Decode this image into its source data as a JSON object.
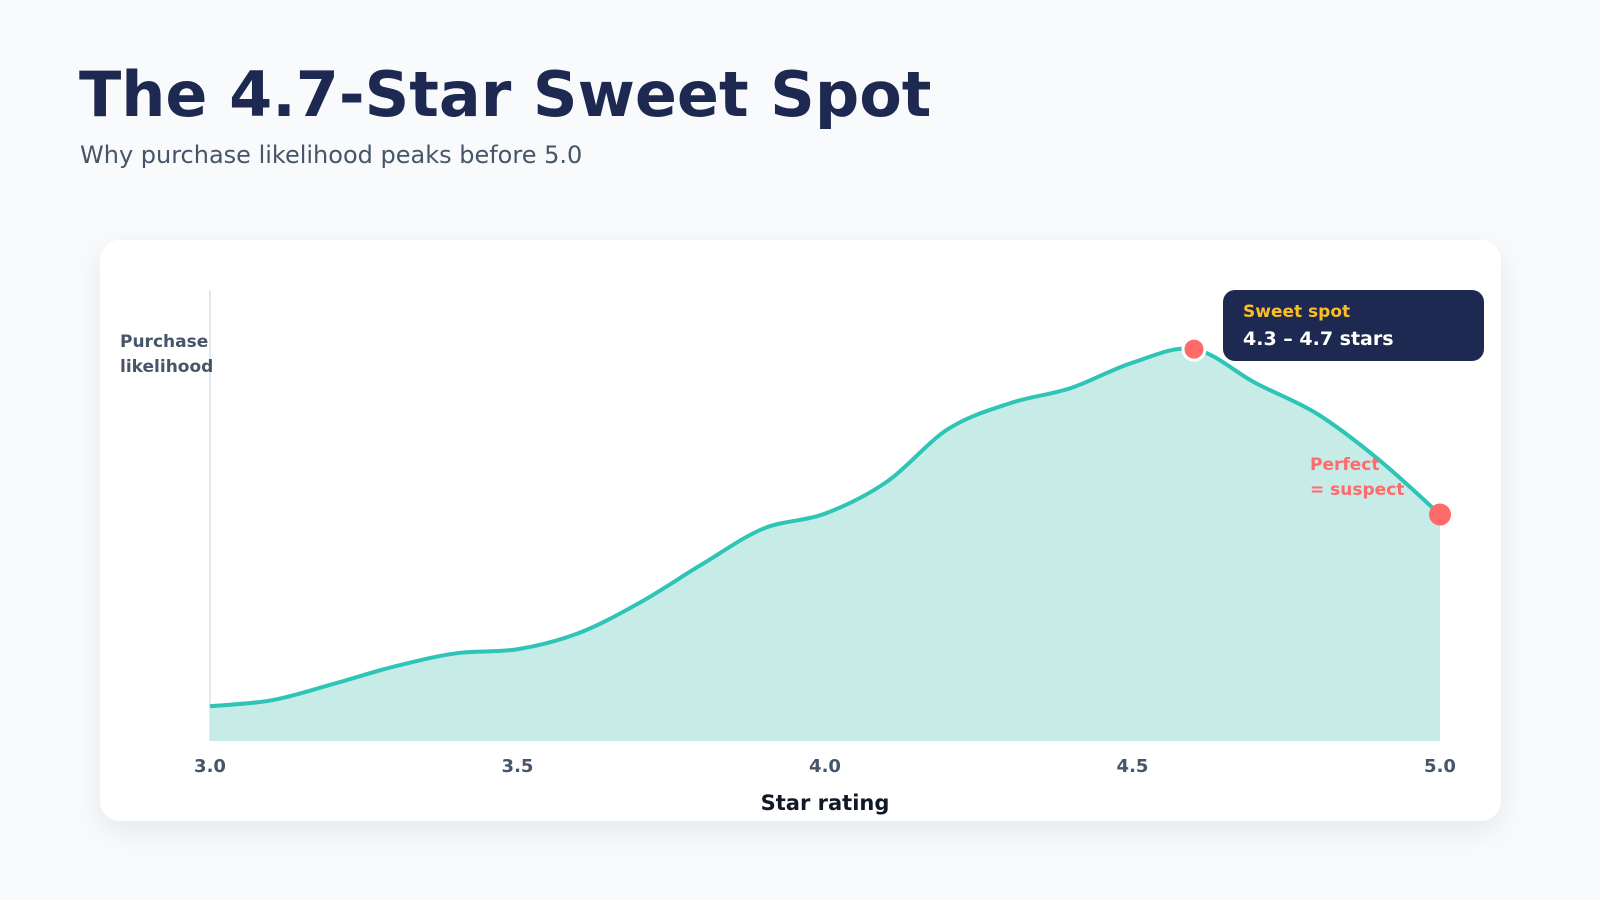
{
  "header": {
    "title": "The 4.7-Star Sweet Spot",
    "subtitle": "Why purchase likelihood peaks before 5.0"
  },
  "chart_data": {
    "type": "area",
    "xlabel": "Star rating",
    "ylabel": "Purchase likelihood",
    "ylabel_lines": [
      "Purchase",
      "likelihood"
    ],
    "xlim": [
      3.0,
      5.0
    ],
    "ylim": [
      0,
      1
    ],
    "y_ticks_shown": false,
    "grid": false,
    "x_ticks": [
      "3.0",
      "3.5",
      "4.0",
      "4.5",
      "5.0"
    ],
    "x": [
      3.0,
      3.1,
      3.2,
      3.3,
      3.4,
      3.5,
      3.6,
      3.7,
      3.8,
      3.9,
      4.0,
      4.1,
      4.2,
      4.3,
      4.4,
      4.5,
      4.6,
      4.7,
      4.8,
      4.9,
      5.0
    ],
    "y": [
      0.077,
      0.09,
      0.126,
      0.165,
      0.194,
      0.203,
      0.239,
      0.307,
      0.391,
      0.47,
      0.503,
      0.573,
      0.69,
      0.747,
      0.781,
      0.837,
      0.867,
      0.792,
      0.724,
      0.623,
      0.501
    ],
    "highlight_points": [
      {
        "x": 4.6,
        "y": 0.867
      },
      {
        "x": 5.0,
        "y": 0.501
      }
    ],
    "annotations": {
      "sweet_spot_label": "Sweet spot",
      "sweet_spot_range": "4.3 – 4.7 stars",
      "perfect_line1": "Perfect",
      "perfect_line2": "= suspect"
    },
    "colors": {
      "line": "#2ec4b6",
      "fill": "#c7ece8",
      "marker": "#ff6b6b",
      "callout_bg": "#1e2952",
      "callout_label": "#fbbf24",
      "callout_text": "#ffffff",
      "annotation": "#ff6b6b"
    }
  }
}
